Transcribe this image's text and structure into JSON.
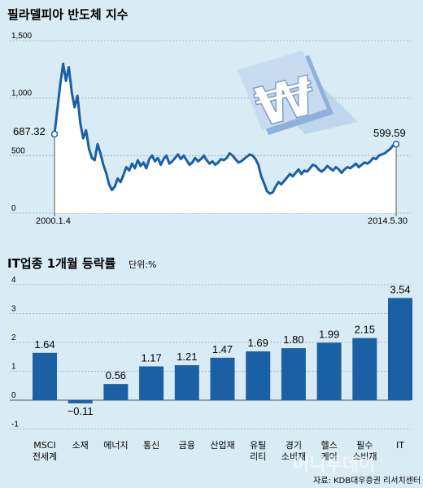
{
  "chart_data": [
    {
      "type": "line",
      "title": "필라델피아 반도체 지수",
      "ylim": [
        0,
        1500
      ],
      "y_ticks": [
        "1,500",
        "1,000",
        "500",
        "0"
      ],
      "x_start_label": "2000.1.4",
      "x_end_label": "2014.5.30",
      "start_label": "687.32",
      "end_label": "599.59",
      "series": [
        {
          "values": [
            687,
            900,
            1120,
            1300,
            1150,
            1270,
            1050,
            920,
            1020,
            780,
            650,
            720,
            560,
            480,
            460,
            600,
            520,
            420,
            350,
            250,
            200,
            230,
            300,
            270,
            330,
            400,
            370,
            430,
            390,
            460,
            410,
            440,
            390,
            470,
            500,
            450,
            480,
            420,
            470,
            500,
            430,
            450,
            480,
            510,
            470,
            500,
            460,
            420,
            440,
            480,
            450,
            470,
            500,
            460,
            430,
            450,
            420,
            440,
            470,
            460,
            480,
            520,
            500,
            470,
            440,
            450,
            470,
            490,
            510,
            500,
            470,
            420,
            320,
            260,
            190,
            170,
            180,
            230,
            270,
            250,
            280,
            310,
            340,
            320,
            350,
            380,
            340,
            370,
            360,
            390,
            420,
            410,
            380,
            360,
            380,
            410,
            390,
            370,
            400,
            380,
            350,
            380,
            400,
            390,
            410,
            430,
            400,
            420,
            440,
            430,
            450,
            480,
            470,
            500,
            510,
            520,
            540,
            560,
            590,
            600
          ]
        }
      ]
    },
    {
      "type": "bar",
      "title": "IT업종 1개월 등락률",
      "unit_label": "단위:%",
      "ylim": [
        -1,
        4
      ],
      "y_ticks": [
        "4",
        "3",
        "2",
        "1",
        "0",
        "-1"
      ],
      "categories": [
        [
          "MSCI",
          "전세계"
        ],
        [
          "소재"
        ],
        [
          "에너지"
        ],
        [
          "통신"
        ],
        [
          "금융"
        ],
        [
          "산업재"
        ],
        [
          "유틸",
          "리티"
        ],
        [
          "경기",
          "소비재"
        ],
        [
          "헬스",
          "케어"
        ],
        [
          "필수",
          "소비재"
        ],
        [
          "IT"
        ]
      ],
      "values": [
        1.64,
        -0.11,
        0.56,
        1.17,
        1.21,
        1.47,
        1.69,
        1.8,
        1.99,
        2.15,
        3.54
      ],
      "value_labels": [
        "1.64",
        "−0.11",
        "0.56",
        "1.17",
        "1.21",
        "1.47",
        "1.69",
        "1.80",
        "1.99",
        "2.15",
        "3.54"
      ]
    }
  ],
  "source_text": "자료: KDB대우증권 리서치센터",
  "watermark_text": "머니투데이",
  "colors": {
    "bg": "#d9ecf6",
    "series": "#1b5fa5",
    "area": "#ffffff",
    "bar": "#1b5fa5"
  },
  "icon": "won-sign-3d-icon"
}
